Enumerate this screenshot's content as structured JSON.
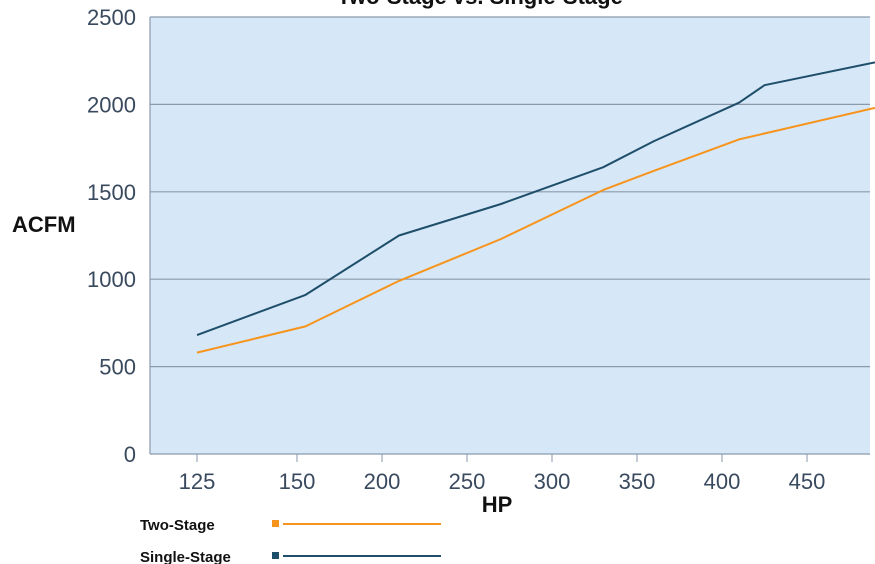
{
  "chart_data": {
    "type": "line",
    "title": "Two-Stage vs. Single-Stage",
    "xlabel": "HP",
    "ylabel": "ACFM",
    "x_ticks": [
      "125",
      "150",
      "200",
      "250",
      "300",
      "350",
      "400",
      "450"
    ],
    "y_ticks": [
      "0",
      "500",
      "1000",
      "1500",
      "2000",
      "2500"
    ],
    "ylim": [
      0,
      2500
    ],
    "grid": true,
    "legend_position": "bottom-left",
    "series": [
      {
        "name": "Two-Stage",
        "color": "#f7941d",
        "x": [
          125,
          155,
          210,
          270,
          330,
          360,
          410,
          490
        ],
        "y": [
          580,
          730,
          990,
          1230,
          1510,
          1620,
          1800,
          1980
        ]
      },
      {
        "name": "Single-Stage",
        "color": "#1f4e6b",
        "x": [
          125,
          155,
          210,
          270,
          330,
          360,
          410,
          425,
          490
        ],
        "y": [
          680,
          910,
          1250,
          1430,
          1640,
          1790,
          2010,
          2110,
          2240
        ]
      }
    ]
  },
  "colors": {
    "plot_background": "#d6e8f7",
    "gridline": "#8b9aab",
    "tick_text": "#3a4a5e"
  }
}
